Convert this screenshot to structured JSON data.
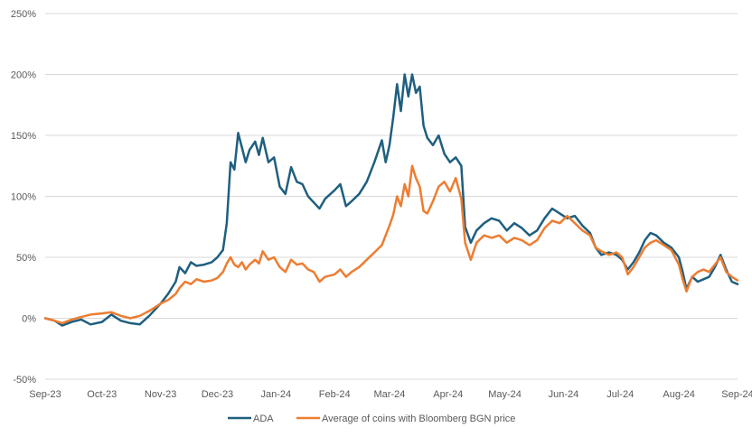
{
  "chart_data": {
    "type": "line",
    "title": "",
    "xlabel": "",
    "ylabel": "",
    "ylim": [
      -50,
      250
    ],
    "y_unit": "%",
    "yticks": [
      -50,
      0,
      50,
      100,
      150,
      200,
      250
    ],
    "ytick_labels": [
      "-50%",
      "0%",
      "50%",
      "100%",
      "150%",
      "200%",
      "250%"
    ],
    "xlim": [
      "2023-09-01",
      "2024-09-01"
    ],
    "xticks": [
      "2023-09-01",
      "2023-10-01",
      "2023-11-01",
      "2023-12-01",
      "2024-01-01",
      "2024-02-01",
      "2024-03-01",
      "2024-04-01",
      "2024-05-01",
      "2024-06-01",
      "2024-07-01",
      "2024-08-01",
      "2024-09-01"
    ],
    "xtick_labels": [
      "Sep-23",
      "Oct-23",
      "Nov-23",
      "Dec-23",
      "Jan-24",
      "Feb-24",
      "Mar-24",
      "Apr-24",
      "May-24",
      "Jun-24",
      "Jul-24",
      "Aug-24",
      "Sep-24"
    ],
    "grid": "horizontal",
    "legend_position": "bottom",
    "series": [
      {
        "name": "ADA",
        "color": "#1f5f7f",
        "points": [
          [
            "2023-09-01",
            0
          ],
          [
            "2023-09-06",
            -2
          ],
          [
            "2023-09-10",
            -6
          ],
          [
            "2023-09-15",
            -3
          ],
          [
            "2023-09-20",
            -1
          ],
          [
            "2023-09-25",
            -5
          ],
          [
            "2023-10-01",
            -3
          ],
          [
            "2023-10-06",
            3
          ],
          [
            "2023-10-11",
            -2
          ],
          [
            "2023-10-16",
            -4
          ],
          [
            "2023-10-21",
            -5
          ],
          [
            "2023-10-26",
            2
          ],
          [
            "2023-11-01",
            12
          ],
          [
            "2023-11-05",
            20
          ],
          [
            "2023-11-09",
            30
          ],
          [
            "2023-11-11",
            42
          ],
          [
            "2023-11-14",
            37
          ],
          [
            "2023-11-17",
            46
          ],
          [
            "2023-11-20",
            43
          ],
          [
            "2023-11-24",
            44
          ],
          [
            "2023-11-28",
            46
          ],
          [
            "2023-12-01",
            50
          ],
          [
            "2023-12-04",
            56
          ],
          [
            "2023-12-06",
            78
          ],
          [
            "2023-12-08",
            128
          ],
          [
            "2023-12-10",
            122
          ],
          [
            "2023-12-12",
            152
          ],
          [
            "2023-12-14",
            140
          ],
          [
            "2023-12-16",
            128
          ],
          [
            "2023-12-18",
            138
          ],
          [
            "2023-12-21",
            145
          ],
          [
            "2023-12-23",
            134
          ],
          [
            "2023-12-25",
            148
          ],
          [
            "2023-12-28",
            128
          ],
          [
            "2023-12-31",
            132
          ],
          [
            "2024-01-03",
            108
          ],
          [
            "2024-01-06",
            102
          ],
          [
            "2024-01-09",
            124
          ],
          [
            "2024-01-12",
            112
          ],
          [
            "2024-01-15",
            110
          ],
          [
            "2024-01-18",
            100
          ],
          [
            "2024-01-21",
            95
          ],
          [
            "2024-01-24",
            90
          ],
          [
            "2024-01-27",
            98
          ],
          [
            "2024-02-01",
            105
          ],
          [
            "2024-02-04",
            110
          ],
          [
            "2024-02-07",
            92
          ],
          [
            "2024-02-10",
            96
          ],
          [
            "2024-02-14",
            102
          ],
          [
            "2024-02-18",
            112
          ],
          [
            "2024-02-22",
            128
          ],
          [
            "2024-02-26",
            146
          ],
          [
            "2024-02-28",
            128
          ],
          [
            "2024-03-01",
            142
          ],
          [
            "2024-03-03",
            165
          ],
          [
            "2024-03-05",
            192
          ],
          [
            "2024-03-07",
            170
          ],
          [
            "2024-03-09",
            200
          ],
          [
            "2024-03-11",
            182
          ],
          [
            "2024-03-13",
            200
          ],
          [
            "2024-03-15",
            185
          ],
          [
            "2024-03-17",
            190
          ],
          [
            "2024-03-19",
            158
          ],
          [
            "2024-03-21",
            148
          ],
          [
            "2024-03-24",
            142
          ],
          [
            "2024-03-27",
            150
          ],
          [
            "2024-03-30",
            135
          ],
          [
            "2024-04-02",
            128
          ],
          [
            "2024-04-05",
            132
          ],
          [
            "2024-04-08",
            125
          ],
          [
            "2024-04-10",
            75
          ],
          [
            "2024-04-13",
            62
          ],
          [
            "2024-04-16",
            72
          ],
          [
            "2024-04-20",
            78
          ],
          [
            "2024-04-24",
            82
          ],
          [
            "2024-04-28",
            80
          ],
          [
            "2024-05-02",
            72
          ],
          [
            "2024-05-06",
            78
          ],
          [
            "2024-05-10",
            74
          ],
          [
            "2024-05-14",
            68
          ],
          [
            "2024-05-18",
            72
          ],
          [
            "2024-05-22",
            82
          ],
          [
            "2024-05-26",
            90
          ],
          [
            "2024-05-30",
            86
          ],
          [
            "2024-06-03",
            82
          ],
          [
            "2024-06-07",
            84
          ],
          [
            "2024-06-11",
            76
          ],
          [
            "2024-06-15",
            70
          ],
          [
            "2024-06-18",
            58
          ],
          [
            "2024-06-21",
            52
          ],
          [
            "2024-06-25",
            54
          ],
          [
            "2024-06-29",
            52
          ],
          [
            "2024-07-02",
            48
          ],
          [
            "2024-07-05",
            40
          ],
          [
            "2024-07-08",
            46
          ],
          [
            "2024-07-11",
            54
          ],
          [
            "2024-07-14",
            64
          ],
          [
            "2024-07-17",
            70
          ],
          [
            "2024-07-20",
            68
          ],
          [
            "2024-07-24",
            62
          ],
          [
            "2024-07-28",
            58
          ],
          [
            "2024-08-01",
            50
          ],
          [
            "2024-08-03",
            38
          ],
          [
            "2024-08-05",
            24
          ],
          [
            "2024-08-08",
            34
          ],
          [
            "2024-08-11",
            30
          ],
          [
            "2024-08-14",
            32
          ],
          [
            "2024-08-17",
            34
          ],
          [
            "2024-08-20",
            42
          ],
          [
            "2024-08-23",
            52
          ],
          [
            "2024-08-26",
            40
          ],
          [
            "2024-08-29",
            30
          ],
          [
            "2024-09-01",
            28
          ]
        ]
      },
      {
        "name": "Average of coins with Bloomberg BGN price",
        "color": "#ed7d31",
        "points": [
          [
            "2023-09-01",
            0
          ],
          [
            "2023-09-06",
            -2
          ],
          [
            "2023-09-10",
            -4
          ],
          [
            "2023-09-15",
            -1
          ],
          [
            "2023-09-20",
            1
          ],
          [
            "2023-09-25",
            3
          ],
          [
            "2023-10-01",
            4
          ],
          [
            "2023-10-06",
            5
          ],
          [
            "2023-10-11",
            2
          ],
          [
            "2023-10-16",
            0
          ],
          [
            "2023-10-21",
            2
          ],
          [
            "2023-10-26",
            6
          ],
          [
            "2023-11-01",
            12
          ],
          [
            "2023-11-05",
            15
          ],
          [
            "2023-11-09",
            20
          ],
          [
            "2023-11-11",
            25
          ],
          [
            "2023-11-14",
            30
          ],
          [
            "2023-11-17",
            28
          ],
          [
            "2023-11-20",
            32
          ],
          [
            "2023-11-24",
            30
          ],
          [
            "2023-11-28",
            31
          ],
          [
            "2023-12-01",
            33
          ],
          [
            "2023-12-04",
            38
          ],
          [
            "2023-12-06",
            45
          ],
          [
            "2023-12-08",
            50
          ],
          [
            "2023-12-10",
            44
          ],
          [
            "2023-12-12",
            42
          ],
          [
            "2023-12-14",
            46
          ],
          [
            "2023-12-16",
            40
          ],
          [
            "2023-12-18",
            44
          ],
          [
            "2023-12-21",
            48
          ],
          [
            "2023-12-23",
            45
          ],
          [
            "2023-12-25",
            55
          ],
          [
            "2023-12-28",
            48
          ],
          [
            "2023-12-31",
            50
          ],
          [
            "2024-01-03",
            42
          ],
          [
            "2024-01-06",
            38
          ],
          [
            "2024-01-09",
            48
          ],
          [
            "2024-01-12",
            44
          ],
          [
            "2024-01-15",
            45
          ],
          [
            "2024-01-18",
            40
          ],
          [
            "2024-01-21",
            38
          ],
          [
            "2024-01-24",
            30
          ],
          [
            "2024-01-27",
            34
          ],
          [
            "2024-02-01",
            36
          ],
          [
            "2024-02-04",
            40
          ],
          [
            "2024-02-07",
            34
          ],
          [
            "2024-02-10",
            38
          ],
          [
            "2024-02-14",
            42
          ],
          [
            "2024-02-18",
            48
          ],
          [
            "2024-02-22",
            54
          ],
          [
            "2024-02-26",
            60
          ],
          [
            "2024-02-28",
            68
          ],
          [
            "2024-03-01",
            76
          ],
          [
            "2024-03-03",
            85
          ],
          [
            "2024-03-05",
            100
          ],
          [
            "2024-03-07",
            92
          ],
          [
            "2024-03-09",
            110
          ],
          [
            "2024-03-11",
            100
          ],
          [
            "2024-03-13",
            125
          ],
          [
            "2024-03-15",
            115
          ],
          [
            "2024-03-17",
            108
          ],
          [
            "2024-03-19",
            88
          ],
          [
            "2024-03-21",
            86
          ],
          [
            "2024-03-24",
            96
          ],
          [
            "2024-03-27",
            108
          ],
          [
            "2024-03-30",
            112
          ],
          [
            "2024-04-02",
            104
          ],
          [
            "2024-04-05",
            115
          ],
          [
            "2024-04-08",
            98
          ],
          [
            "2024-04-10",
            62
          ],
          [
            "2024-04-13",
            48
          ],
          [
            "2024-04-16",
            62
          ],
          [
            "2024-04-20",
            68
          ],
          [
            "2024-04-24",
            66
          ],
          [
            "2024-04-28",
            68
          ],
          [
            "2024-05-02",
            62
          ],
          [
            "2024-05-06",
            66
          ],
          [
            "2024-05-10",
            64
          ],
          [
            "2024-05-14",
            60
          ],
          [
            "2024-05-18",
            64
          ],
          [
            "2024-05-22",
            74
          ],
          [
            "2024-05-26",
            80
          ],
          [
            "2024-05-30",
            78
          ],
          [
            "2024-06-03",
            84
          ],
          [
            "2024-06-07",
            78
          ],
          [
            "2024-06-11",
            72
          ],
          [
            "2024-06-15",
            68
          ],
          [
            "2024-06-18",
            58
          ],
          [
            "2024-06-21",
            55
          ],
          [
            "2024-06-25",
            52
          ],
          [
            "2024-06-29",
            54
          ],
          [
            "2024-07-02",
            50
          ],
          [
            "2024-07-05",
            36
          ],
          [
            "2024-07-08",
            42
          ],
          [
            "2024-07-11",
            50
          ],
          [
            "2024-07-14",
            58
          ],
          [
            "2024-07-17",
            62
          ],
          [
            "2024-07-20",
            64
          ],
          [
            "2024-07-24",
            60
          ],
          [
            "2024-07-28",
            56
          ],
          [
            "2024-08-01",
            44
          ],
          [
            "2024-08-03",
            32
          ],
          [
            "2024-08-05",
            22
          ],
          [
            "2024-08-08",
            34
          ],
          [
            "2024-08-11",
            38
          ],
          [
            "2024-08-14",
            40
          ],
          [
            "2024-08-17",
            38
          ],
          [
            "2024-08-20",
            44
          ],
          [
            "2024-08-23",
            50
          ],
          [
            "2024-08-26",
            38
          ],
          [
            "2024-08-29",
            34
          ],
          [
            "2024-09-01",
            31
          ]
        ]
      }
    ]
  }
}
